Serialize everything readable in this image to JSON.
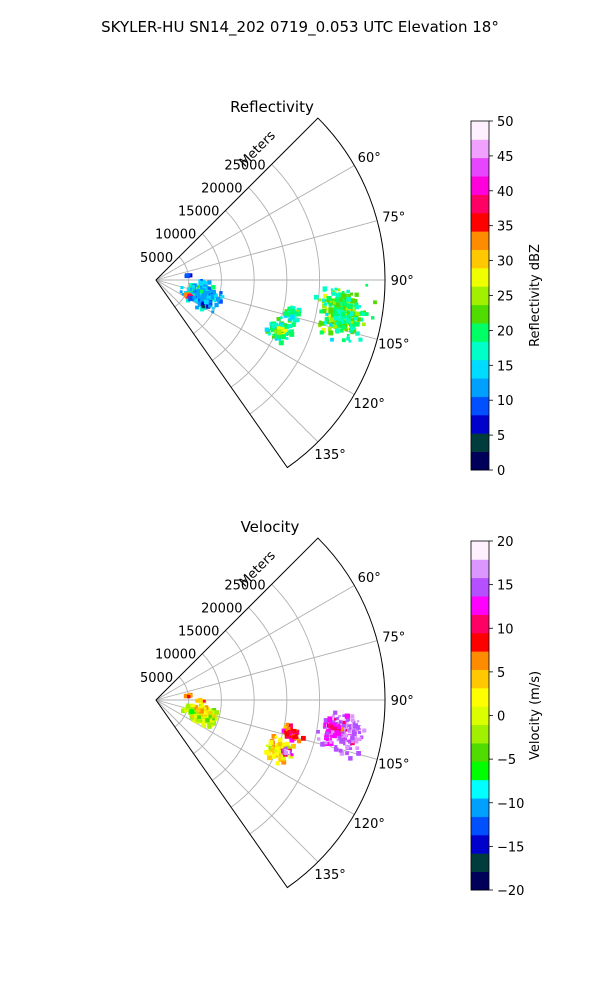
{
  "figure": {
    "suptitle": "SKYLER-HU  SN14_202  0719_0.053 UTC Elevation 18°"
  },
  "chart_data": [
    {
      "type": "polar-sector-ppi",
      "title": "Reflectivity",
      "range_label": "Meters",
      "range_ticks": [
        "5000",
        "10000",
        "15000",
        "20000",
        "25000"
      ],
      "range_tick_values": [
        5000,
        10000,
        15000,
        20000,
        25000
      ],
      "range_max": 35000,
      "angle_ticks": [
        "60°",
        "75°",
        "90°",
        "105°",
        "120°",
        "135°"
      ],
      "angle_tick_values": [
        60,
        75,
        90,
        105,
        120,
        135
      ],
      "angle_range": [
        45,
        145
      ],
      "grid": true,
      "colorbar": {
        "label": "Reflectivity dBZ",
        "min": 0,
        "max": 50,
        "ticks": [
          "0",
          "5",
          "10",
          "15",
          "20",
          "25",
          "30",
          "35",
          "40",
          "45",
          "50"
        ],
        "tick_values": [
          0,
          5,
          10,
          15,
          20,
          25,
          30,
          35,
          40,
          45,
          50
        ],
        "colormap": [
          "#00005a",
          "#003c3c",
          "#0000cd",
          "#0050ff",
          "#00a0ff",
          "#00dcff",
          "#00ffc8",
          "#00ff64",
          "#50dc00",
          "#a0f000",
          "#f0ff00",
          "#ffc800",
          "#ff8c00",
          "#ff0000",
          "#ff0064",
          "#ff00dc",
          "#e646ff",
          "#f0a0ff",
          "#fff0ff"
        ]
      },
      "echoes": [
        {
          "azimuth": 100,
          "range": 29000,
          "value": 24,
          "spread_az": 5,
          "spread_r": 2600,
          "n": 170
        },
        {
          "azimuth": 100,
          "range": 29000,
          "value": 19,
          "spread_az": 7,
          "spread_r": 3400,
          "n": 130
        },
        {
          "azimuth": 104,
          "range": 21500,
          "value": 19,
          "spread_az": 2.5,
          "spread_r": 1200,
          "n": 45
        },
        {
          "azimuth": 112,
          "range": 20500,
          "value": 19,
          "spread_az": 4,
          "spread_r": 1800,
          "n": 90
        },
        {
          "azimuth": 112,
          "range": 20500,
          "value": 26,
          "spread_az": 1.5,
          "spread_r": 600,
          "n": 12
        },
        {
          "azimuth": 108,
          "range": 7500,
          "value": 19,
          "spread_az": 9,
          "spread_r": 1800,
          "n": 130
        },
        {
          "azimuth": 108,
          "range": 7500,
          "value": 13,
          "spread_az": 11,
          "spread_r": 2600,
          "n": 110
        },
        {
          "azimuth": 116,
          "range": 5500,
          "value": 36,
          "spread_az": 3,
          "spread_r": 500,
          "n": 20
        },
        {
          "azimuth": 115,
          "range": 8000,
          "value": 10,
          "spread_az": 4,
          "spread_r": 1600,
          "n": 25
        },
        {
          "azimuth": 82,
          "range": 5000,
          "value": 10,
          "spread_az": 2,
          "spread_r": 400,
          "n": 10
        },
        {
          "azimuth": 92,
          "range": 7000,
          "value": 14,
          "spread_az": 2,
          "spread_r": 600,
          "n": 8
        }
      ]
    },
    {
      "type": "polar-sector-ppi",
      "title": "Velocity",
      "range_label": "Meters",
      "range_ticks": [
        "5000",
        "10000",
        "15000",
        "20000",
        "25000"
      ],
      "range_tick_values": [
        5000,
        10000,
        15000,
        20000,
        25000
      ],
      "range_max": 35000,
      "angle_ticks": [
        "60°",
        "75°",
        "90°",
        "105°",
        "120°",
        "135°"
      ],
      "angle_tick_values": [
        60,
        75,
        90,
        105,
        120,
        135
      ],
      "angle_range": [
        45,
        145
      ],
      "grid": true,
      "colorbar": {
        "label": "Velocity (m/s)",
        "min": -20,
        "max": 20,
        "ticks": [
          "−20",
          "−15",
          "−10",
          "−5",
          "0",
          "5",
          "10",
          "15",
          "20"
        ],
        "tick_values": [
          -20,
          -15,
          -10,
          -5,
          0,
          5,
          10,
          15,
          20
        ],
        "colormap": [
          "#00005a",
          "#003c3c",
          "#0000cd",
          "#0050ff",
          "#00a0ff",
          "#00ffff",
          "#00ff00",
          "#50dc00",
          "#a0f000",
          "#dcff00",
          "#ffff00",
          "#ffc800",
          "#ff8c00",
          "#ff0000",
          "#ff0064",
          "#ff00ff",
          "#b450ff",
          "#dc96ff",
          "#fff0ff"
        ]
      },
      "echoes": [
        {
          "azimuth": 100,
          "range": 29000,
          "value": 16,
          "spread_az": 5,
          "spread_r": 2600,
          "n": 200
        },
        {
          "azimuth": 99,
          "range": 27500,
          "value": 12,
          "spread_az": 2.5,
          "spread_r": 1200,
          "n": 35
        },
        {
          "azimuth": 104,
          "range": 21500,
          "value": 8,
          "spread_az": 2.5,
          "spread_r": 1200,
          "n": 45
        },
        {
          "azimuth": 112,
          "range": 20500,
          "value": 3,
          "spread_az": 4,
          "spread_r": 1800,
          "n": 90
        },
        {
          "azimuth": 112,
          "range": 21500,
          "value": 14,
          "spread_az": 1.5,
          "spread_r": 700,
          "n": 15
        },
        {
          "azimuth": 108,
          "range": 7500,
          "value": 0,
          "spread_az": 9,
          "spread_r": 2000,
          "n": 220
        },
        {
          "azimuth": 102,
          "range": 7000,
          "value": 3,
          "spread_az": 4,
          "spread_r": 900,
          "n": 40
        },
        {
          "azimuth": 82,
          "range": 5000,
          "value": 6,
          "spread_az": 2,
          "spread_r": 400,
          "n": 10
        },
        {
          "azimuth": 92,
          "range": 7000,
          "value": 4,
          "spread_az": 2,
          "spread_r": 600,
          "n": 8
        }
      ]
    }
  ]
}
